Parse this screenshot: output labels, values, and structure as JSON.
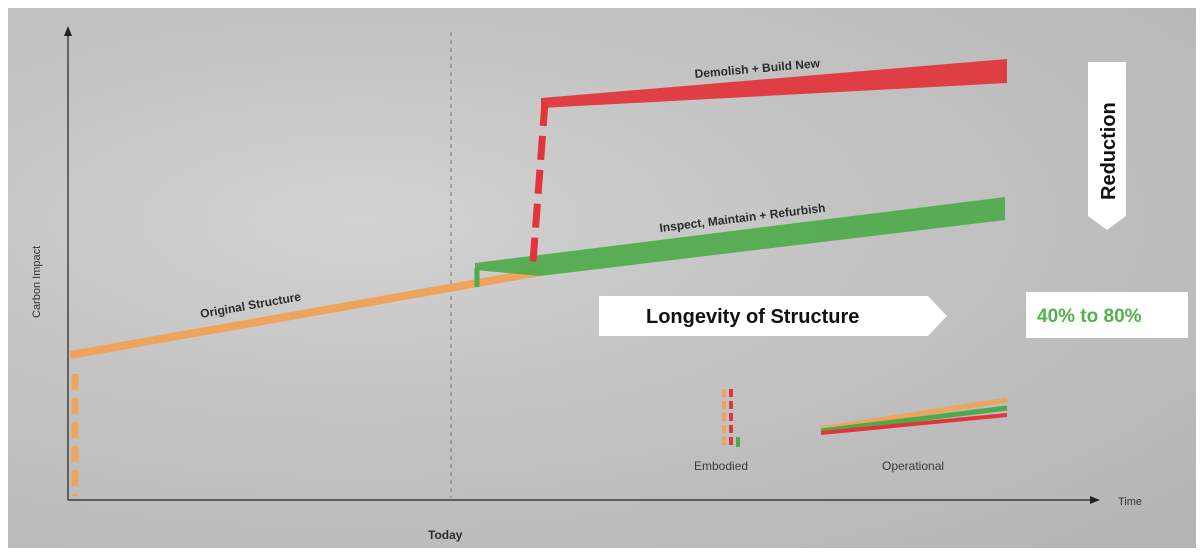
{
  "labels": {
    "demolish": "Demolish + Build New",
    "inspect": "Inspect, Maintain + Refurbish",
    "original": "Original Structure",
    "longevity": "Longevity of Structure",
    "reduction": "Reduction",
    "percent": "40% to 80%",
    "embodied": "Embodied",
    "operational": "Operational",
    "y_axis": "Carbon Impact",
    "x_axis": "Time",
    "today": "Today"
  },
  "colors": {
    "red": "#e2343a",
    "green": "#4cab48",
    "orange": "#eea45a",
    "white": "#ffffff"
  }
}
